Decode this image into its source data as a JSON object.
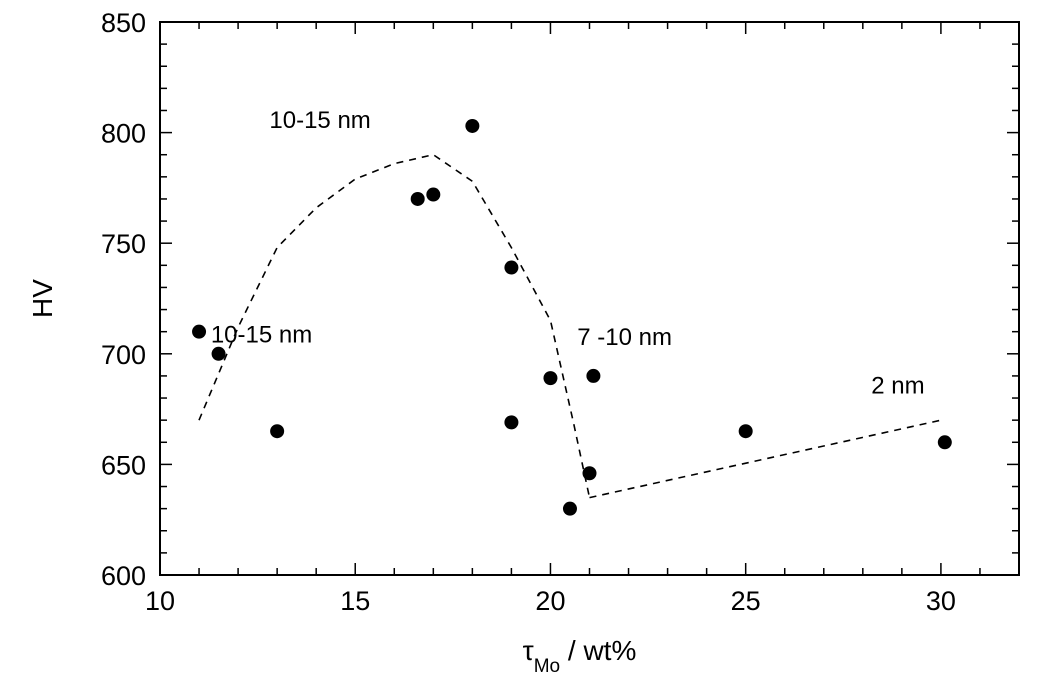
{
  "chart_data": {
    "type": "scatter",
    "title": "",
    "xlabel_main": "τ",
    "xlabel_sub": "Mo",
    "xlabel_rest": " / wt%",
    "ylabel": "HV",
    "xlim": [
      10,
      32
    ],
    "ylim": [
      600,
      850
    ],
    "x_ticks": [
      10,
      15,
      20,
      25,
      30
    ],
    "y_ticks": [
      600,
      650,
      700,
      750,
      800,
      850
    ],
    "x_tick_labels": [
      "10",
      "15",
      "20",
      "25",
      "30"
    ],
    "y_tick_labels": [
      "600",
      "650",
      "700",
      "750",
      "800",
      "850"
    ],
    "grid": false,
    "series": [
      {
        "points": [
          {
            "x": 11.0,
            "y": 710
          },
          {
            "x": 11.5,
            "y": 700
          },
          {
            "x": 13.0,
            "y": 665
          },
          {
            "x": 16.6,
            "y": 770
          },
          {
            "x": 17.0,
            "y": 772
          },
          {
            "x": 18.0,
            "y": 803
          },
          {
            "x": 19.0,
            "y": 739
          },
          {
            "x": 19.0,
            "y": 669
          },
          {
            "x": 20.0,
            "y": 689
          },
          {
            "x": 20.5,
            "y": 630
          },
          {
            "x": 21.0,
            "y": 646
          },
          {
            "x": 21.1,
            "y": 690
          },
          {
            "x": 25.0,
            "y": 665
          },
          {
            "x": 30.1,
            "y": 660
          }
        ]
      }
    ],
    "trend_lines": [
      {
        "style": "dashed",
        "points": [
          {
            "x": 11.0,
            "y": 670
          },
          {
            "x": 12.0,
            "y": 712
          },
          {
            "x": 13.0,
            "y": 748
          },
          {
            "x": 14.0,
            "y": 766
          },
          {
            "x": 15.0,
            "y": 779
          },
          {
            "x": 16.0,
            "y": 786
          },
          {
            "x": 17.0,
            "y": 790
          },
          {
            "x": 18.0,
            "y": 778
          },
          {
            "x": 19.0,
            "y": 748
          },
          {
            "x": 20.0,
            "y": 715
          },
          {
            "x": 20.6,
            "y": 668
          },
          {
            "x": 21.0,
            "y": 635
          }
        ]
      },
      {
        "style": "dashed",
        "points": [
          {
            "x": 21.0,
            "y": 635
          },
          {
            "x": 30.0,
            "y": 670
          }
        ]
      }
    ],
    "annotations": [
      {
        "text": "10-15 nm",
        "x": 14.1,
        "y": 802
      },
      {
        "text": "10-15 nm",
        "x": 12.6,
        "y": 705
      },
      {
        "text": "7 -10 nm",
        "x": 21.9,
        "y": 704
      },
      {
        "text": "2 nm",
        "x": 28.9,
        "y": 682
      }
    ]
  }
}
